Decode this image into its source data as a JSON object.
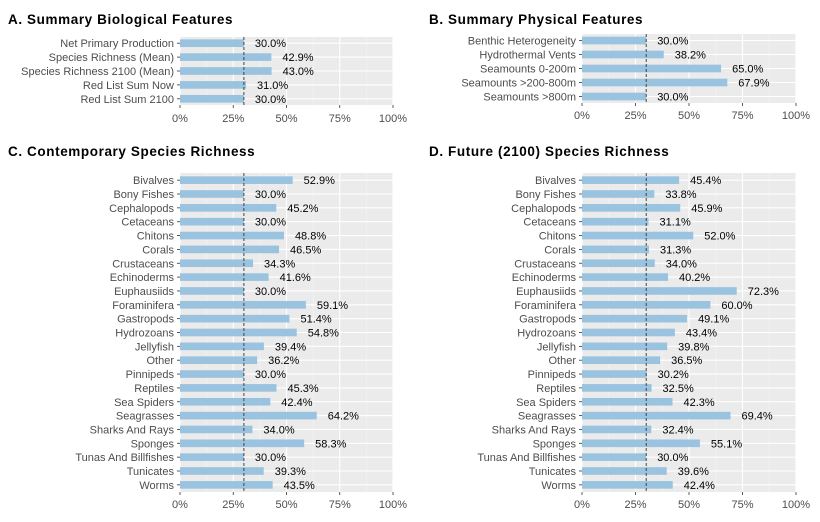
{
  "chart_data": [
    {
      "type": "bar",
      "orientation": "horizontal",
      "title": "A. Summary Biological Features",
      "categories": [
        "Net Primary Production",
        "Species Richness (Mean)",
        "Species Richness 2100 (Mean)",
        "Red List Sum Now",
        "Red List Sum 2100"
      ],
      "values": [
        30.0,
        42.9,
        43.0,
        31.0,
        30.0
      ],
      "value_labels": [
        "30.0%",
        "42.9%",
        "43.0%",
        "31.0%",
        "30.0%"
      ],
      "xlim": [
        0,
        100
      ],
      "xticks": [
        0,
        25,
        50,
        75,
        100
      ],
      "xtick_labels": [
        "0%",
        "25%",
        "50%",
        "75%",
        "100%"
      ],
      "reference_line": 30,
      "bar_color": "#9ac3df",
      "grid": true
    },
    {
      "type": "bar",
      "orientation": "horizontal",
      "title": "B. Summary Physical Features",
      "categories": [
        "Benthic Heterogeneity",
        "Hydrothermal Vents",
        "Seamounts 0-200m",
        "Seamounts >200-800m",
        "Seamounts >800m"
      ],
      "values": [
        30.0,
        38.2,
        65.0,
        67.9,
        30.0
      ],
      "value_labels": [
        "30.0%",
        "38.2%",
        "65.0%",
        "67.9%",
        "30.0%"
      ],
      "xlim": [
        0,
        100
      ],
      "xticks": [
        0,
        25,
        50,
        75,
        100
      ],
      "xtick_labels": [
        "0%",
        "25%",
        "50%",
        "75%",
        "100%"
      ],
      "reference_line": 30,
      "bar_color": "#9ac3df",
      "grid": true
    },
    {
      "type": "bar",
      "orientation": "horizontal",
      "title": "C. Contemporary Species Richness",
      "categories": [
        "Bivalves",
        "Bony Fishes",
        "Cephalopods",
        "Cetaceans",
        "Chitons",
        "Corals",
        "Crustaceans",
        "Echinoderms",
        "Euphausiids",
        "Foraminifera",
        "Gastropods",
        "Hydrozoans",
        "Jellyfish",
        "Other",
        "Pinnipeds",
        "Reptiles",
        "Sea Spiders",
        "Seagrasses",
        "Sharks And Rays",
        "Sponges",
        "Tunas And Billfishes",
        "Tunicates",
        "Worms"
      ],
      "values": [
        52.9,
        30.0,
        45.2,
        30.0,
        48.8,
        46.5,
        34.3,
        41.6,
        30.0,
        59.1,
        51.4,
        54.8,
        39.4,
        36.2,
        30.0,
        45.3,
        42.4,
        64.2,
        34.0,
        58.3,
        30.0,
        39.3,
        43.5
      ],
      "value_labels": [
        "52.9%",
        "30.0%",
        "45.2%",
        "30.0%",
        "48.8%",
        "46.5%",
        "34.3%",
        "41.6%",
        "30.0%",
        "59.1%",
        "51.4%",
        "54.8%",
        "39.4%",
        "36.2%",
        "30.0%",
        "45.3%",
        "42.4%",
        "64.2%",
        "34.0%",
        "58.3%",
        "30.0%",
        "39.3%",
        "43.5%"
      ],
      "xlim": [
        0,
        100
      ],
      "xticks": [
        0,
        25,
        50,
        75,
        100
      ],
      "xtick_labels": [
        "0%",
        "25%",
        "50%",
        "75%",
        "100%"
      ],
      "reference_line": 30,
      "bar_color": "#9ac3df",
      "grid": true
    },
    {
      "type": "bar",
      "orientation": "horizontal",
      "title": "D. Future (2100) Species Richness",
      "categories": [
        "Bivalves",
        "Bony Fishes",
        "Cephalopods",
        "Cetaceans",
        "Chitons",
        "Corals",
        "Crustaceans",
        "Echinoderms",
        "Euphausiids",
        "Foraminifera",
        "Gastropods",
        "Hydrozoans",
        "Jellyfish",
        "Other",
        "Pinnipeds",
        "Reptiles",
        "Sea Spiders",
        "Seagrasses",
        "Sharks And Rays",
        "Sponges",
        "Tunas And Billfishes",
        "Tunicates",
        "Worms"
      ],
      "values": [
        45.4,
        33.8,
        45.9,
        31.1,
        52.0,
        31.3,
        34.0,
        40.2,
        72.3,
        60.0,
        49.1,
        43.4,
        39.8,
        36.5,
        30.2,
        32.5,
        42.3,
        69.4,
        32.4,
        55.1,
        30.0,
        39.6,
        42.4
      ],
      "value_labels": [
        "45.4%",
        "33.8%",
        "45.9%",
        "31.1%",
        "52.0%",
        "31.3%",
        "34.0%",
        "40.2%",
        "72.3%",
        "60.0%",
        "49.1%",
        "43.4%",
        "39.8%",
        "36.5%",
        "30.2%",
        "32.5%",
        "42.3%",
        "69.4%",
        "32.4%",
        "55.1%",
        "30.0%",
        "39.6%",
        "42.4%"
      ],
      "xlim": [
        0,
        100
      ],
      "xticks": [
        0,
        25,
        50,
        75,
        100
      ],
      "xtick_labels": [
        "0%",
        "25%",
        "50%",
        "75%",
        "100%"
      ],
      "reference_line": 30,
      "bar_color": "#9ac3df",
      "grid": true
    }
  ],
  "style": {
    "panel_background": "#ebebeb",
    "grid_major": "#ffffff",
    "reference_line_color": "#333333"
  }
}
